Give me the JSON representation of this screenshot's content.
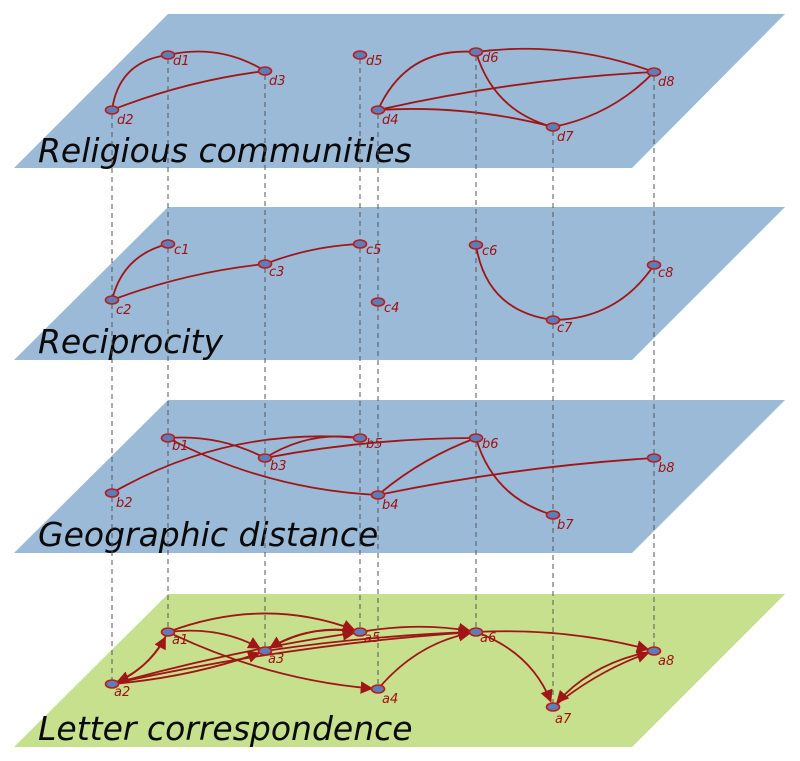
{
  "colors": {
    "plane_blue": "#9bbad8",
    "plane_green": "#c6e08e",
    "edge": "#a01616",
    "node_fill": "#5a7fb8",
    "node_stroke": "#c01818",
    "label": "#a01010"
  },
  "layers": [
    {
      "id": "religious",
      "title": "Religious communities",
      "color": "plane_blue",
      "nodes": [
        {
          "id": "d1",
          "label": "d1"
        },
        {
          "id": "d2",
          "label": "d2"
        },
        {
          "id": "d3",
          "label": "d3"
        },
        {
          "id": "d4",
          "label": "d4"
        },
        {
          "id": "d5",
          "label": "d5"
        },
        {
          "id": "d6",
          "label": "d6"
        },
        {
          "id": "d7",
          "label": "d7"
        },
        {
          "id": "d8",
          "label": "d8"
        }
      ],
      "edges": [
        [
          "d2",
          "d1"
        ],
        [
          "d2",
          "d3"
        ],
        [
          "d1",
          "d3"
        ],
        [
          "d4",
          "d6"
        ],
        [
          "d4",
          "d8"
        ],
        [
          "d4",
          "d7"
        ],
        [
          "d6",
          "d8"
        ],
        [
          "d6",
          "d7"
        ],
        [
          "d7",
          "d8"
        ]
      ]
    },
    {
      "id": "reciprocity",
      "title": "Reciprocity",
      "color": "plane_blue",
      "nodes": [
        {
          "id": "c1",
          "label": "c1"
        },
        {
          "id": "c2",
          "label": "c2"
        },
        {
          "id": "c3",
          "label": "c3"
        },
        {
          "id": "c4",
          "label": "c4"
        },
        {
          "id": "c5",
          "label": "c5"
        },
        {
          "id": "c6",
          "label": "c6"
        },
        {
          "id": "c7",
          "label": "c7"
        },
        {
          "id": "c8",
          "label": "c8"
        }
      ],
      "edges": [
        [
          "c2",
          "c1"
        ],
        [
          "c2",
          "c3"
        ],
        [
          "c3",
          "c5"
        ],
        [
          "c6",
          "c7"
        ],
        [
          "c7",
          "c8"
        ]
      ]
    },
    {
      "id": "geographic",
      "title": "Geographic distance",
      "color": "plane_blue",
      "nodes": [
        {
          "id": "b1",
          "label": "b1"
        },
        {
          "id": "b2",
          "label": "b2"
        },
        {
          "id": "b3",
          "label": "b3"
        },
        {
          "id": "b4",
          "label": "b4"
        },
        {
          "id": "b5",
          "label": "b5"
        },
        {
          "id": "b6",
          "label": "b6"
        },
        {
          "id": "b7",
          "label": "b7"
        },
        {
          "id": "b8",
          "label": "b8"
        }
      ],
      "edges": [
        [
          "b1",
          "b3"
        ],
        [
          "b1",
          "b4"
        ],
        [
          "b2",
          "b5"
        ],
        [
          "b3",
          "b5"
        ],
        [
          "b3",
          "b6"
        ],
        [
          "b4",
          "b6"
        ],
        [
          "b4",
          "b8"
        ],
        [
          "b6",
          "b7"
        ]
      ]
    },
    {
      "id": "letter",
      "title": "Letter correspondence",
      "color": "plane_green",
      "nodes": [
        {
          "id": "a1",
          "label": "a1"
        },
        {
          "id": "a2",
          "label": "a2"
        },
        {
          "id": "a3",
          "label": "a3"
        },
        {
          "id": "a4",
          "label": "a4"
        },
        {
          "id": "a5",
          "label": "a5"
        },
        {
          "id": "a6",
          "label": "a6"
        },
        {
          "id": "a7",
          "label": "a7"
        },
        {
          "id": "a8",
          "label": "a8"
        }
      ],
      "edges": [
        [
          "a1",
          "a2"
        ],
        [
          "a2",
          "a1"
        ],
        [
          "a1",
          "a3"
        ],
        [
          "a1",
          "a4"
        ],
        [
          "a1",
          "a5"
        ],
        [
          "a2",
          "a3"
        ],
        [
          "a2",
          "a5"
        ],
        [
          "a2",
          "a6"
        ],
        [
          "a3",
          "a5"
        ],
        [
          "a5",
          "a3"
        ],
        [
          "a3",
          "a6"
        ],
        [
          "a4",
          "a6"
        ],
        [
          "a5",
          "a6"
        ],
        [
          "a6",
          "a7"
        ],
        [
          "a6",
          "a8"
        ],
        [
          "a7",
          "a8"
        ],
        [
          "a8",
          "a7"
        ]
      ]
    }
  ],
  "vertical_links": [
    [
      "d1",
      "c1",
      "b1",
      "a1"
    ],
    [
      "d2",
      "c2",
      "b2",
      "a2"
    ],
    [
      "d3",
      "c3",
      "b3",
      "a3"
    ],
    [
      "d4",
      "c4",
      "b4",
      "a4"
    ],
    [
      "d5",
      "c5",
      "b5",
      "a5"
    ],
    [
      "d6",
      "c6",
      "b6",
      "a6"
    ],
    [
      "d7",
      "c7",
      "b7",
      "a7"
    ],
    [
      "d8",
      "c8",
      "b8",
      "a8"
    ]
  ]
}
